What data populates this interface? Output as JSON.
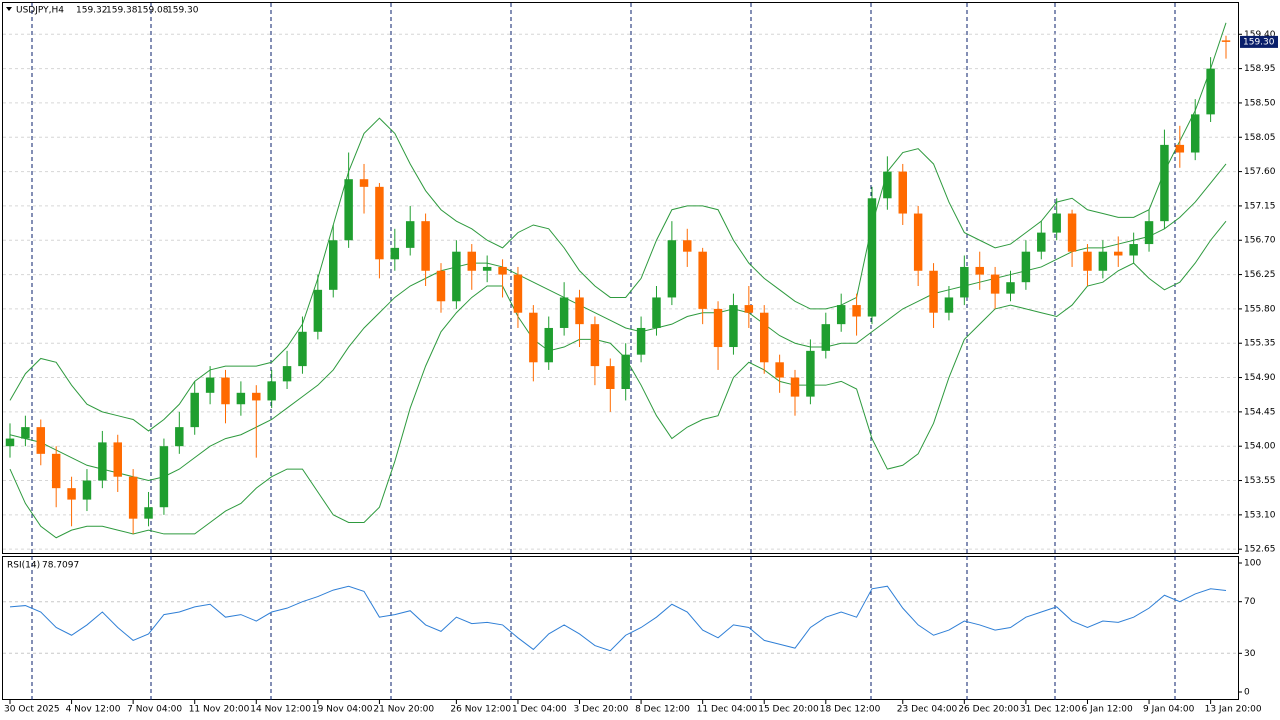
{
  "chart_data": [
    {
      "type": "candlestick",
      "title": "USDJPY,H4",
      "last_price_label": "159.30",
      "up_color": "#1f9e2f",
      "down_color": "#ff6a00",
      "price_box_color": "#0a1f6b",
      "categories": [
        "30 Oct 2025",
        null,
        null,
        null,
        "4 Nov 12:00",
        null,
        null,
        null,
        "7 Nov 04:00",
        null,
        null,
        null,
        "11 Nov 20:00",
        null,
        null,
        null,
        "14 Nov 12:00",
        null,
        null,
        null,
        "19 Nov 04:00",
        null,
        null,
        null,
        "21 Nov 20:00",
        null,
        null,
        null,
        null,
        "26 Nov 12:00",
        null,
        null,
        null,
        "1 Dec 04:00",
        null,
        null,
        null,
        "3 Dec 20:00",
        null,
        null,
        null,
        "8 Dec 12:00",
        null,
        null,
        null,
        "11 Dec 04:00",
        null,
        null,
        null,
        "15 Dec 20:00",
        null,
        null,
        null,
        "18 Dec 12:00",
        null,
        null,
        null,
        null,
        "23 Dec 04:00",
        null,
        null,
        null,
        "26 Dec 20:00",
        null,
        null,
        null,
        "31 Dec 12:00",
        null,
        null,
        null,
        "6 Jan 12:00",
        null,
        null,
        null,
        "9 Jan 04:00",
        null,
        null,
        null,
        "13 Jan 20:00",
        null
      ],
      "open": [
        154.0,
        154.1,
        154.25,
        153.9,
        153.45,
        153.3,
        153.55,
        154.05,
        153.6,
        153.05,
        153.2,
        154.0,
        154.25,
        154.7,
        154.9,
        154.55,
        154.7,
        154.6,
        154.85,
        155.05,
        155.5,
        156.05,
        156.7,
        157.5,
        157.4,
        156.45,
        156.6,
        156.95,
        156.3,
        155.9,
        156.55,
        156.3,
        156.35,
        156.25,
        155.75,
        155.1,
        155.55,
        155.95,
        155.6,
        155.05,
        154.75,
        155.2,
        155.55,
        155.95,
        156.7,
        156.55,
        155.8,
        155.3,
        155.85,
        155.75,
        155.1,
        154.9,
        154.65,
        155.25,
        155.6,
        155.85,
        155.7,
        157.25,
        157.6,
        157.05,
        156.3,
        155.75,
        155.95,
        156.35,
        156.25,
        156.0,
        156.15,
        156.55,
        156.8,
        157.05,
        156.55,
        156.3,
        156.55,
        156.5,
        156.65,
        156.95,
        157.95,
        157.85,
        158.35,
        159.32
      ],
      "high": [
        154.3,
        154.4,
        154.35,
        154.0,
        153.6,
        153.7,
        154.2,
        154.15,
        153.7,
        153.4,
        154.1,
        154.45,
        154.85,
        155.05,
        155.0,
        154.85,
        154.8,
        155.0,
        155.25,
        155.7,
        156.25,
        156.9,
        157.85,
        157.7,
        157.45,
        156.85,
        157.15,
        157.05,
        156.4,
        156.7,
        156.65,
        156.5,
        156.45,
        156.35,
        155.85,
        155.7,
        156.15,
        156.05,
        155.7,
        155.15,
        155.35,
        155.7,
        156.1,
        156.95,
        156.85,
        156.6,
        155.9,
        156.0,
        156.1,
        155.85,
        155.2,
        155.0,
        155.4,
        155.75,
        156.0,
        156.0,
        157.4,
        157.8,
        157.7,
        157.15,
        156.4,
        156.1,
        156.5,
        156.55,
        156.35,
        156.3,
        156.7,
        156.95,
        157.25,
        157.1,
        156.65,
        156.7,
        156.75,
        156.8,
        157.1,
        158.15,
        158.2,
        158.55,
        159.1,
        159.38
      ],
      "low": [
        153.85,
        154.0,
        153.75,
        153.2,
        152.95,
        153.15,
        153.45,
        153.4,
        152.85,
        152.95,
        153.1,
        153.9,
        154.15,
        154.55,
        154.3,
        154.4,
        153.85,
        154.5,
        154.75,
        154.95,
        155.4,
        155.95,
        156.6,
        157.05,
        156.2,
        156.3,
        156.5,
        156.1,
        155.75,
        155.8,
        156.05,
        156.15,
        155.95,
        155.55,
        154.85,
        155.0,
        155.45,
        155.3,
        154.8,
        154.45,
        154.6,
        155.1,
        155.45,
        155.85,
        156.35,
        155.6,
        155.0,
        155.2,
        155.55,
        154.95,
        154.7,
        154.4,
        154.55,
        155.15,
        155.5,
        155.45,
        155.6,
        157.1,
        156.9,
        156.1,
        155.55,
        155.65,
        155.85,
        156.05,
        155.8,
        155.9,
        156.05,
        156.45,
        156.7,
        156.35,
        156.1,
        156.2,
        156.35,
        156.4,
        156.55,
        156.85,
        157.65,
        157.75,
        158.25,
        159.08
      ],
      "close": [
        154.1,
        154.25,
        153.9,
        153.45,
        153.3,
        153.55,
        154.05,
        153.6,
        153.05,
        153.2,
        154.0,
        154.25,
        154.7,
        154.9,
        154.55,
        154.7,
        154.6,
        154.85,
        155.05,
        155.5,
        156.05,
        156.7,
        157.5,
        157.4,
        156.45,
        156.6,
        156.95,
        156.3,
        155.9,
        156.55,
        156.3,
        156.35,
        156.25,
        155.75,
        155.1,
        155.55,
        155.95,
        155.6,
        155.05,
        154.75,
        155.2,
        155.55,
        155.95,
        156.7,
        156.55,
        155.8,
        155.3,
        155.85,
        155.75,
        155.1,
        154.9,
        154.65,
        155.25,
        155.6,
        155.85,
        155.7,
        157.25,
        157.6,
        157.05,
        156.3,
        155.75,
        155.95,
        156.35,
        156.25,
        156.0,
        156.15,
        156.55,
        156.8,
        157.05,
        156.55,
        156.3,
        156.55,
        156.5,
        156.65,
        156.95,
        157.95,
        157.85,
        158.35,
        158.95,
        159.3
      ],
      "series": [
        {
          "color": "#2e9a3e",
          "values": [
            154.6,
            154.95,
            155.15,
            155.1,
            154.8,
            154.55,
            154.45,
            154.4,
            154.35,
            154.2,
            154.35,
            154.55,
            154.85,
            155.0,
            155.05,
            155.05,
            155.05,
            155.1,
            155.3,
            155.6,
            156.2,
            156.9,
            157.6,
            158.1,
            158.3,
            158.1,
            157.7,
            157.35,
            157.1,
            156.95,
            156.85,
            156.7,
            156.6,
            156.8,
            156.9,
            156.85,
            156.6,
            156.3,
            156.1,
            155.95,
            155.95,
            156.2,
            156.7,
            157.1,
            157.15,
            157.15,
            157.1,
            156.7,
            156.4,
            156.2,
            156.05,
            155.9,
            155.8,
            155.8,
            155.85,
            155.95,
            156.9,
            157.6,
            157.85,
            157.9,
            157.7,
            157.2,
            156.8,
            156.7,
            156.6,
            156.65,
            156.8,
            156.95,
            157.2,
            157.25,
            157.1,
            157.05,
            157.0,
            157.0,
            157.1,
            157.6,
            158.0,
            158.4,
            158.95,
            159.55
          ]
        },
        {
          "color": "#2e9a3e",
          "values": [
            154.15,
            154.1,
            154.05,
            153.95,
            153.85,
            153.75,
            153.7,
            153.65,
            153.6,
            153.55,
            153.6,
            153.7,
            153.85,
            154.0,
            154.1,
            154.15,
            154.25,
            154.35,
            154.5,
            154.65,
            154.8,
            155.0,
            155.3,
            155.55,
            155.75,
            155.95,
            156.1,
            156.2,
            156.3,
            156.35,
            156.4,
            156.4,
            156.35,
            156.25,
            156.15,
            156.05,
            155.95,
            155.85,
            155.75,
            155.65,
            155.55,
            155.5,
            155.55,
            155.6,
            155.7,
            155.75,
            155.75,
            155.8,
            155.75,
            155.6,
            155.45,
            155.35,
            155.3,
            155.3,
            155.35,
            155.35,
            155.5,
            155.65,
            155.8,
            155.9,
            156.0,
            156.05,
            156.1,
            156.15,
            156.2,
            156.25,
            156.3,
            156.35,
            156.45,
            156.55,
            156.6,
            156.6,
            156.65,
            156.7,
            156.75,
            156.85,
            157.0,
            157.2,
            157.45,
            157.7
          ]
        },
        {
          "color": "#2e9a3e",
          "values": [
            153.7,
            153.25,
            152.95,
            152.8,
            152.9,
            152.95,
            152.95,
            152.9,
            152.85,
            152.9,
            152.85,
            152.85,
            152.85,
            153.0,
            153.15,
            153.25,
            153.45,
            153.6,
            153.7,
            153.7,
            153.4,
            153.1,
            153.0,
            153.0,
            153.2,
            153.8,
            154.5,
            155.05,
            155.5,
            155.75,
            155.95,
            156.1,
            156.1,
            155.7,
            155.4,
            155.25,
            155.3,
            155.4,
            155.4,
            155.35,
            155.15,
            154.8,
            154.4,
            154.1,
            154.25,
            154.35,
            154.4,
            154.9,
            155.1,
            155.0,
            154.85,
            154.8,
            154.8,
            154.8,
            154.85,
            154.75,
            154.1,
            153.7,
            153.75,
            153.9,
            154.3,
            154.9,
            155.4,
            155.6,
            155.8,
            155.85,
            155.8,
            155.75,
            155.7,
            155.85,
            156.1,
            156.15,
            156.3,
            156.4,
            156.2,
            156.05,
            156.15,
            156.4,
            156.7,
            156.95
          ]
        }
      ],
      "ylim": [
        152.6,
        159.81
      ],
      "yticks": [
        152.65,
        {
          "value": 153.1,
          "label": "153.10"
        },
        153.55,
        {
          "value": 154,
          "label": "154.00"
        },
        154.45,
        {
          "value": 154.9,
          "label": "154.90"
        },
        155.35,
        {
          "value": 155.8,
          "label": "155.80"
        },
        156.25,
        {
          "value": 156.7,
          "label": "156.70"
        },
        157.15,
        {
          "value": 157.6,
          "label": "157.60"
        },
        158.05,
        {
          "value": 158.5,
          "label": "158.50"
        },
        158.95,
        {
          "value": 159.4,
          "label": "159.40"
        }
      ],
      "grid": true
    },
    {
      "type": "line",
      "title": "RSI(14)",
      "series": [
        {
          "color": "#2f7fd6",
          "values": [
            66,
            67,
            62,
            50,
            44,
            52,
            62,
            50,
            40,
            45,
            60,
            62,
            66,
            68,
            58,
            60,
            55,
            62,
            65,
            70,
            74,
            79,
            82,
            78,
            58,
            60,
            63,
            52,
            47,
            58,
            53,
            54,
            52,
            42,
            33,
            45,
            52,
            45,
            36,
            32,
            44,
            50,
            58,
            68,
            62,
            48,
            42,
            52,
            50,
            40,
            37,
            34,
            50,
            58,
            62,
            58,
            80,
            82,
            65,
            52,
            44,
            48,
            55,
            52,
            48,
            50,
            58,
            62,
            66,
            55,
            50,
            55,
            54,
            58,
            65,
            75,
            70,
            76,
            80,
            78.7097
          ]
        }
      ],
      "ylim": [
        0,
        100
      ],
      "yticks": [
        100,
        70,
        30,
        0
      ],
      "grid_levels": [
        70,
        30
      ]
    }
  ]
}
